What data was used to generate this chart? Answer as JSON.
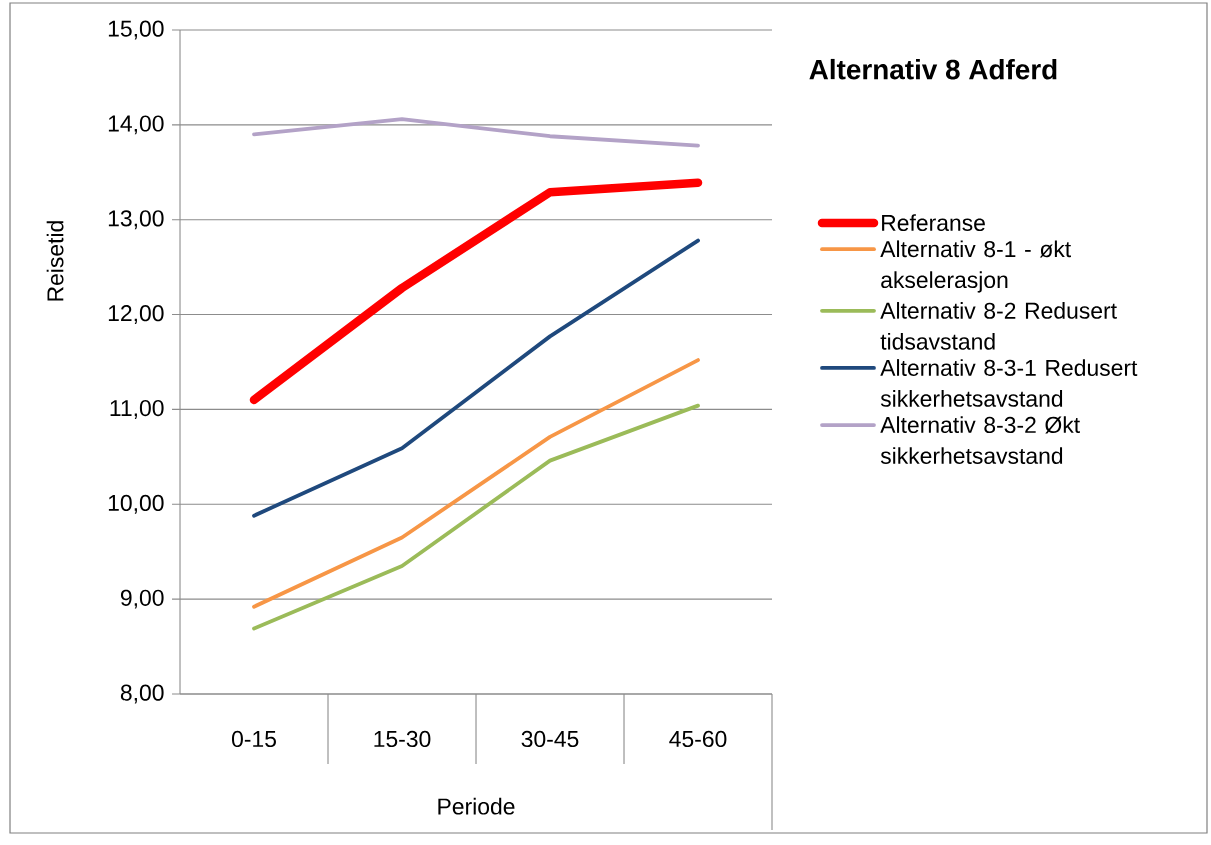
{
  "chart_data": {
    "type": "line",
    "title": "Alternativ 8 Adferd",
    "xlabel": "Periode",
    "ylabel": "Reisetid",
    "categories": [
      "0-15",
      "15-30",
      "30-45",
      "45-60"
    ],
    "series": [
      {
        "name": "Referanse",
        "color": "#ff0000",
        "values": [
          11.1,
          12.28,
          13.29,
          13.39
        ]
      },
      {
        "name": "Alternativ 8-1 - økt akselerasjon",
        "color": "#f79646",
        "values": [
          8.92,
          9.65,
          10.71,
          11.52
        ]
      },
      {
        "name": "Alternativ 8-2 Redusert tidsavstand",
        "color": "#9bbb59",
        "values": [
          8.69,
          9.35,
          10.46,
          11.04
        ]
      },
      {
        "name": "Alternativ 8-3-1 Redusert sikkerhetsavstand",
        "color": "#1f497d",
        "values": [
          9.88,
          10.59,
          11.77,
          12.78
        ]
      },
      {
        "name": "Alternativ 8-3-2 Økt sikkerhetsavstand",
        "color": "#b3a2c7",
        "values": [
          13.9,
          14.06,
          13.88,
          13.78
        ]
      }
    ],
    "ylim": [
      8,
      15
    ],
    "yticks": [
      {
        "value": 8,
        "label": "8,00"
      },
      {
        "value": 9,
        "label": "9,00"
      },
      {
        "value": 10,
        "label": "10,00"
      },
      {
        "value": 11,
        "label": "11,00"
      },
      {
        "value": 12,
        "label": "12,00"
      },
      {
        "value": 13,
        "label": "13,00"
      },
      {
        "value": 14,
        "label": "14,00"
      },
      {
        "value": 15,
        "label": "15,00"
      }
    ],
    "grid": "y",
    "legend": "right",
    "line_style": "solid"
  }
}
